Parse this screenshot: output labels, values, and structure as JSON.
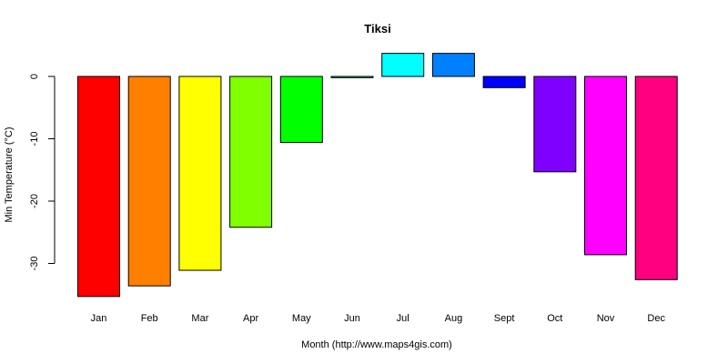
{
  "chart_data": {
    "type": "bar",
    "title": "Tiksi",
    "xlabel": "Month (http://www.maps4gis.com)",
    "ylabel": "Min Temperature (°C)",
    "categories": [
      "Jan",
      "Feb",
      "Mar",
      "Apr",
      "May",
      "Jun",
      "Jul",
      "Aug",
      "Sept",
      "Oct",
      "Nov",
      "Dec"
    ],
    "values": [
      -35.3,
      -33.6,
      -31.1,
      -24.2,
      -10.6,
      -0.2,
      3.7,
      3.7,
      -1.8,
      -15.3,
      -28.6,
      -32.6
    ],
    "colors": [
      "#FF0000",
      "#FF8000",
      "#FFFF00",
      "#80FF00",
      "#00FF00",
      "#00FF80",
      "#00FFFF",
      "#0080FF",
      "#0000FF",
      "#8000FF",
      "#FF00FF",
      "#FF0080"
    ],
    "yticks": [
      0,
      -10,
      -20,
      -30
    ],
    "ylim": [
      -36,
      4
    ],
    "grid": false,
    "legend": "none"
  }
}
